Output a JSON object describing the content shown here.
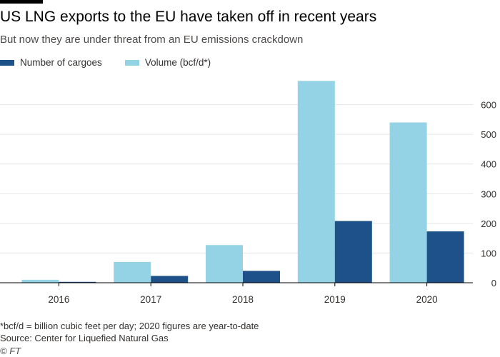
{
  "colors": {
    "cargoes": "#1e5189",
    "volume": "#94d3e5",
    "grid": "#e6e3e0",
    "axis": "#000000",
    "text": "#33302e"
  },
  "header": {
    "title": "US LNG exports to the EU have taken off in recent years",
    "subtitle": "But now they are under threat from an EU emissions crackdown"
  },
  "footer": {
    "note": "*bcf/d = billion cubic feet per day; 2020 figures are year-to-date",
    "source": "Source: Center for Liquefied Natural Gas",
    "credit": "© FT"
  },
  "chart_data": {
    "type": "bar",
    "categories": [
      "2016",
      "2017",
      "2018",
      "2019",
      "2020"
    ],
    "series": [
      {
        "name": "Volume (bcf/d*)",
        "values": [
          10,
          70,
          127,
          680,
          540
        ]
      },
      {
        "name": "Number of cargoes",
        "values": [
          3,
          23,
          40,
          208,
          173
        ]
      }
    ],
    "legend_order": [
      "Number of cargoes",
      "Volume (bcf/d*)"
    ],
    "ylim": [
      0,
      700
    ],
    "yticks": [
      0,
      100,
      200,
      300,
      400,
      500,
      600
    ],
    "y_axis_side": "right",
    "grid": true,
    "legend_position": "top-left"
  }
}
